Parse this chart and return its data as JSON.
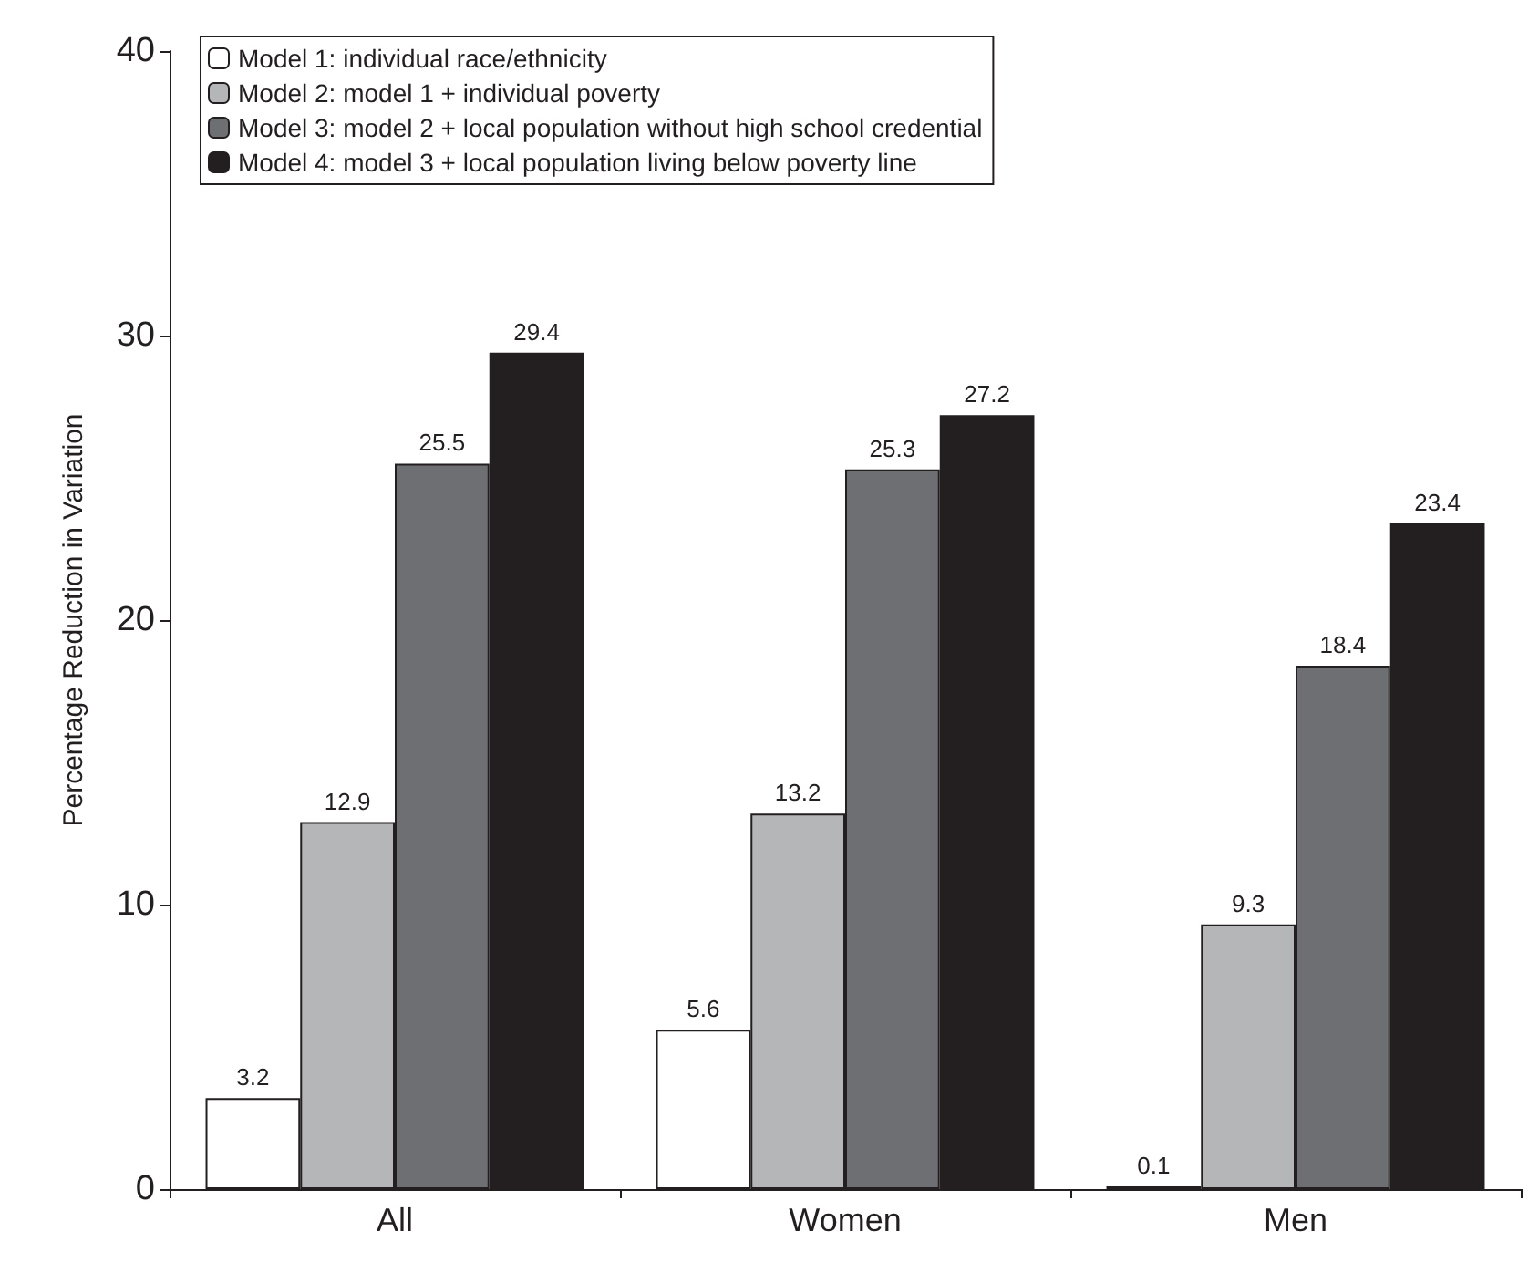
{
  "chart_data": {
    "type": "bar",
    "ylabel": "Percentage Reduction in Variation",
    "categories": [
      "All",
      "Women",
      "Men"
    ],
    "series": [
      {
        "name": "Model 1: individual race/ethnicity",
        "color": "#ffffff",
        "values": [
          3.2,
          5.6,
          0.1
        ]
      },
      {
        "name": "Model 2: model 1 + individual poverty",
        "color": "#b5b6b8",
        "values": [
          12.9,
          13.2,
          9.3
        ]
      },
      {
        "name": "Model 3: model 2 + local population without high school credential",
        "color": "#6e6f73",
        "values": [
          25.5,
          25.3,
          18.4
        ]
      },
      {
        "name": "Model 4: model 3 + local population living below poverty line",
        "color": "#231f20",
        "values": [
          29.4,
          27.2,
          23.4
        ]
      }
    ],
    "ylim": [
      0,
      40
    ],
    "yticks": [
      0,
      10,
      20,
      30,
      40
    ],
    "grid": false,
    "legend": "top left",
    "data_labels": true
  }
}
